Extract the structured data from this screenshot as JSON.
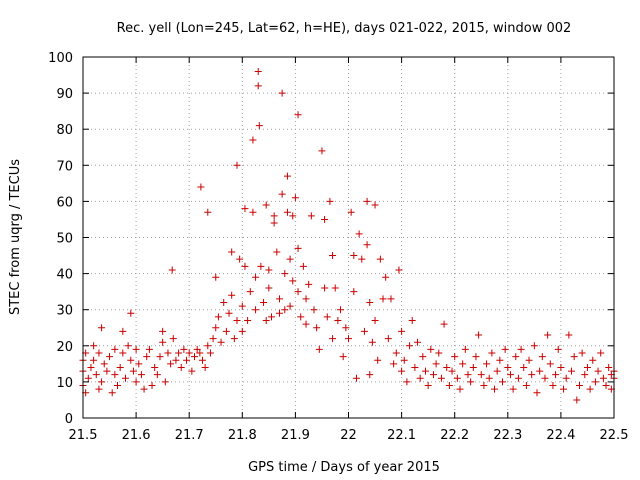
{
  "chart_data": {
    "type": "scatter",
    "title": "Rec. yell (Lon=245, Lat=62, h=HE), days 021-022, 2015, window 002",
    "xlabel": "GPS time / Days of year 2015",
    "ylabel": "STEC from uqrg / TECUs",
    "xlim": [
      21.5,
      22.5
    ],
    "ylim": [
      0,
      100
    ],
    "xticks": [
      "21.5",
      "21.6",
      "21.7",
      "21.8",
      "21.9",
      "22",
      "22.1",
      "22.2",
      "22.3",
      "22.4",
      "22.5"
    ],
    "yticks": [
      "0",
      "10",
      "20",
      "30",
      "40",
      "50",
      "60",
      "70",
      "80",
      "90",
      "100"
    ],
    "grid": true,
    "marker": "plus",
    "color": "#cc0000",
    "points": [
      [
        21.5,
        16
      ],
      [
        21.5,
        13
      ],
      [
        21.5,
        9
      ],
      [
        21.505,
        18
      ],
      [
        21.505,
        7
      ],
      [
        21.51,
        11
      ],
      [
        21.515,
        14
      ],
      [
        21.52,
        20
      ],
      [
        21.52,
        16
      ],
      [
        21.525,
        12
      ],
      [
        21.53,
        8
      ],
      [
        21.53,
        18
      ],
      [
        21.535,
        25
      ],
      [
        21.535,
        10
      ],
      [
        21.54,
        15
      ],
      [
        21.545,
        13
      ],
      [
        21.55,
        17
      ],
      [
        21.555,
        7
      ],
      [
        21.56,
        12
      ],
      [
        21.56,
        19
      ],
      [
        21.565,
        9
      ],
      [
        21.57,
        14
      ],
      [
        21.575,
        24
      ],
      [
        21.575,
        18
      ],
      [
        21.58,
        11
      ],
      [
        21.585,
        20
      ],
      [
        21.59,
        29
      ],
      [
        21.59,
        16
      ],
      [
        21.595,
        13
      ],
      [
        21.6,
        10
      ],
      [
        21.6,
        19
      ],
      [
        21.605,
        15
      ],
      [
        21.61,
        12
      ],
      [
        21.615,
        8
      ],
      [
        21.62,
        17
      ],
      [
        21.625,
        19
      ],
      [
        21.63,
        9
      ],
      [
        21.635,
        14
      ],
      [
        21.64,
        12
      ],
      [
        21.645,
        17
      ],
      [
        21.65,
        21
      ],
      [
        21.65,
        24
      ],
      [
        21.655,
        10
      ],
      [
        21.66,
        18
      ],
      [
        21.665,
        15
      ],
      [
        21.668,
        41
      ],
      [
        21.67,
        22
      ],
      [
        21.675,
        16
      ],
      [
        21.68,
        18
      ],
      [
        21.685,
        14
      ],
      [
        21.69,
        19
      ],
      [
        21.695,
        16
      ],
      [
        21.7,
        18
      ],
      [
        21.705,
        13
      ],
      [
        21.71,
        17
      ],
      [
        21.715,
        19
      ],
      [
        21.72,
        18
      ],
      [
        21.722,
        64
      ],
      [
        21.725,
        16
      ],
      [
        21.73,
        14
      ],
      [
        21.735,
        57
      ],
      [
        21.735,
        20
      ],
      [
        21.74,
        18
      ],
      [
        21.745,
        22
      ],
      [
        21.75,
        39
      ],
      [
        21.75,
        25
      ],
      [
        21.755,
        28
      ],
      [
        21.76,
        21
      ],
      [
        21.765,
        32
      ],
      [
        21.77,
        24
      ],
      [
        21.775,
        29
      ],
      [
        21.78,
        46
      ],
      [
        21.78,
        34
      ],
      [
        21.785,
        22
      ],
      [
        21.79,
        27
      ],
      [
        21.79,
        70
      ],
      [
        21.795,
        44
      ],
      [
        21.8,
        31
      ],
      [
        21.8,
        24
      ],
      [
        21.805,
        42
      ],
      [
        21.805,
        58
      ],
      [
        21.81,
        27
      ],
      [
        21.815,
        35
      ],
      [
        21.82,
        77
      ],
      [
        21.82,
        57
      ],
      [
        21.825,
        30
      ],
      [
        21.825,
        39
      ],
      [
        21.83,
        96
      ],
      [
        21.83,
        92
      ],
      [
        21.832,
        81
      ],
      [
        21.835,
        42
      ],
      [
        21.84,
        32
      ],
      [
        21.845,
        59
      ],
      [
        21.845,
        27
      ],
      [
        21.85,
        41
      ],
      [
        21.85,
        36
      ],
      [
        21.855,
        28
      ],
      [
        21.86,
        56
      ],
      [
        21.86,
        54
      ],
      [
        21.865,
        46
      ],
      [
        21.87,
        33
      ],
      [
        21.87,
        29
      ],
      [
        21.875,
        90
      ],
      [
        21.875,
        62
      ],
      [
        21.88,
        40
      ],
      [
        21.88,
        30
      ],
      [
        21.885,
        57
      ],
      [
        21.885,
        67
      ],
      [
        21.89,
        44
      ],
      [
        21.89,
        31
      ],
      [
        21.895,
        56
      ],
      [
        21.895,
        38
      ],
      [
        21.9,
        61
      ],
      [
        21.905,
        84
      ],
      [
        21.905,
        47
      ],
      [
        21.905,
        35
      ],
      [
        21.91,
        28
      ],
      [
        21.915,
        42
      ],
      [
        21.92,
        33
      ],
      [
        21.92,
        26
      ],
      [
        21.925,
        37
      ],
      [
        21.93,
        56
      ],
      [
        21.935,
        30
      ],
      [
        21.94,
        25
      ],
      [
        21.945,
        19
      ],
      [
        21.95,
        74
      ],
      [
        21.955,
        55
      ],
      [
        21.955,
        36
      ],
      [
        21.96,
        28
      ],
      [
        21.965,
        60
      ],
      [
        21.97,
        45
      ],
      [
        21.97,
        22
      ],
      [
        21.975,
        36
      ],
      [
        21.98,
        27
      ],
      [
        21.985,
        30
      ],
      [
        21.99,
        17
      ],
      [
        21.995,
        25
      ],
      [
        22.0,
        22
      ],
      [
        22.005,
        57
      ],
      [
        22.01,
        45
      ],
      [
        22.01,
        35
      ],
      [
        22.015,
        11
      ],
      [
        22.02,
        51
      ],
      [
        22.025,
        44
      ],
      [
        22.03,
        24
      ],
      [
        22.035,
        60
      ],
      [
        22.035,
        48
      ],
      [
        22.04,
        32
      ],
      [
        22.04,
        12
      ],
      [
        22.045,
        21
      ],
      [
        22.05,
        59
      ],
      [
        22.05,
        27
      ],
      [
        22.055,
        16
      ],
      [
        22.06,
        44
      ],
      [
        22.065,
        33
      ],
      [
        22.07,
        39
      ],
      [
        22.075,
        22
      ],
      [
        22.08,
        33
      ],
      [
        22.085,
        15
      ],
      [
        22.09,
        18
      ],
      [
        22.095,
        41
      ],
      [
        22.1,
        24
      ],
      [
        22.1,
        13
      ],
      [
        22.105,
        16
      ],
      [
        22.11,
        10
      ],
      [
        22.115,
        20
      ],
      [
        22.12,
        27
      ],
      [
        22.125,
        14
      ],
      [
        22.13,
        21
      ],
      [
        22.135,
        11
      ],
      [
        22.14,
        17
      ],
      [
        22.145,
        13
      ],
      [
        22.15,
        9
      ],
      [
        22.155,
        19
      ],
      [
        22.16,
        12
      ],
      [
        22.165,
        15
      ],
      [
        22.17,
        18
      ],
      [
        22.175,
        11
      ],
      [
        22.18,
        26
      ],
      [
        22.185,
        14
      ],
      [
        22.19,
        9
      ],
      [
        22.195,
        13
      ],
      [
        22.2,
        17
      ],
      [
        22.205,
        11
      ],
      [
        22.21,
        8
      ],
      [
        22.215,
        15
      ],
      [
        22.22,
        19
      ],
      [
        22.225,
        12
      ],
      [
        22.23,
        10
      ],
      [
        22.235,
        14
      ],
      [
        22.24,
        17
      ],
      [
        22.245,
        23
      ],
      [
        22.25,
        12
      ],
      [
        22.255,
        9
      ],
      [
        22.26,
        15
      ],
      [
        22.265,
        11
      ],
      [
        22.27,
        18
      ],
      [
        22.275,
        8
      ],
      [
        22.28,
        13
      ],
      [
        22.285,
        16
      ],
      [
        22.29,
        10
      ],
      [
        22.295,
        19
      ],
      [
        22.3,
        14
      ],
      [
        22.305,
        12
      ],
      [
        22.31,
        8
      ],
      [
        22.315,
        17
      ],
      [
        22.32,
        11
      ],
      [
        22.325,
        19
      ],
      [
        22.33,
        14
      ],
      [
        22.335,
        9
      ],
      [
        22.34,
        16
      ],
      [
        22.345,
        12
      ],
      [
        22.35,
        20
      ],
      [
        22.355,
        7
      ],
      [
        22.36,
        13
      ],
      [
        22.365,
        17
      ],
      [
        22.37,
        11
      ],
      [
        22.375,
        23
      ],
      [
        22.38,
        15
      ],
      [
        22.385,
        9
      ],
      [
        22.39,
        12
      ],
      [
        22.395,
        19
      ],
      [
        22.4,
        14
      ],
      [
        22.405,
        8
      ],
      [
        22.41,
        11
      ],
      [
        22.415,
        23
      ],
      [
        22.42,
        13
      ],
      [
        22.425,
        17
      ],
      [
        22.43,
        5
      ],
      [
        22.435,
        9
      ],
      [
        22.44,
        18
      ],
      [
        22.445,
        12
      ],
      [
        22.45,
        14
      ],
      [
        22.455,
        8
      ],
      [
        22.46,
        16
      ],
      [
        22.465,
        10
      ],
      [
        22.47,
        13
      ],
      [
        22.475,
        18
      ],
      [
        22.48,
        11
      ],
      [
        22.485,
        9
      ],
      [
        22.49,
        14
      ],
      [
        22.495,
        12
      ],
      [
        22.495,
        8
      ],
      [
        22.5,
        11
      ],
      [
        22.5,
        13
      ]
    ]
  }
}
